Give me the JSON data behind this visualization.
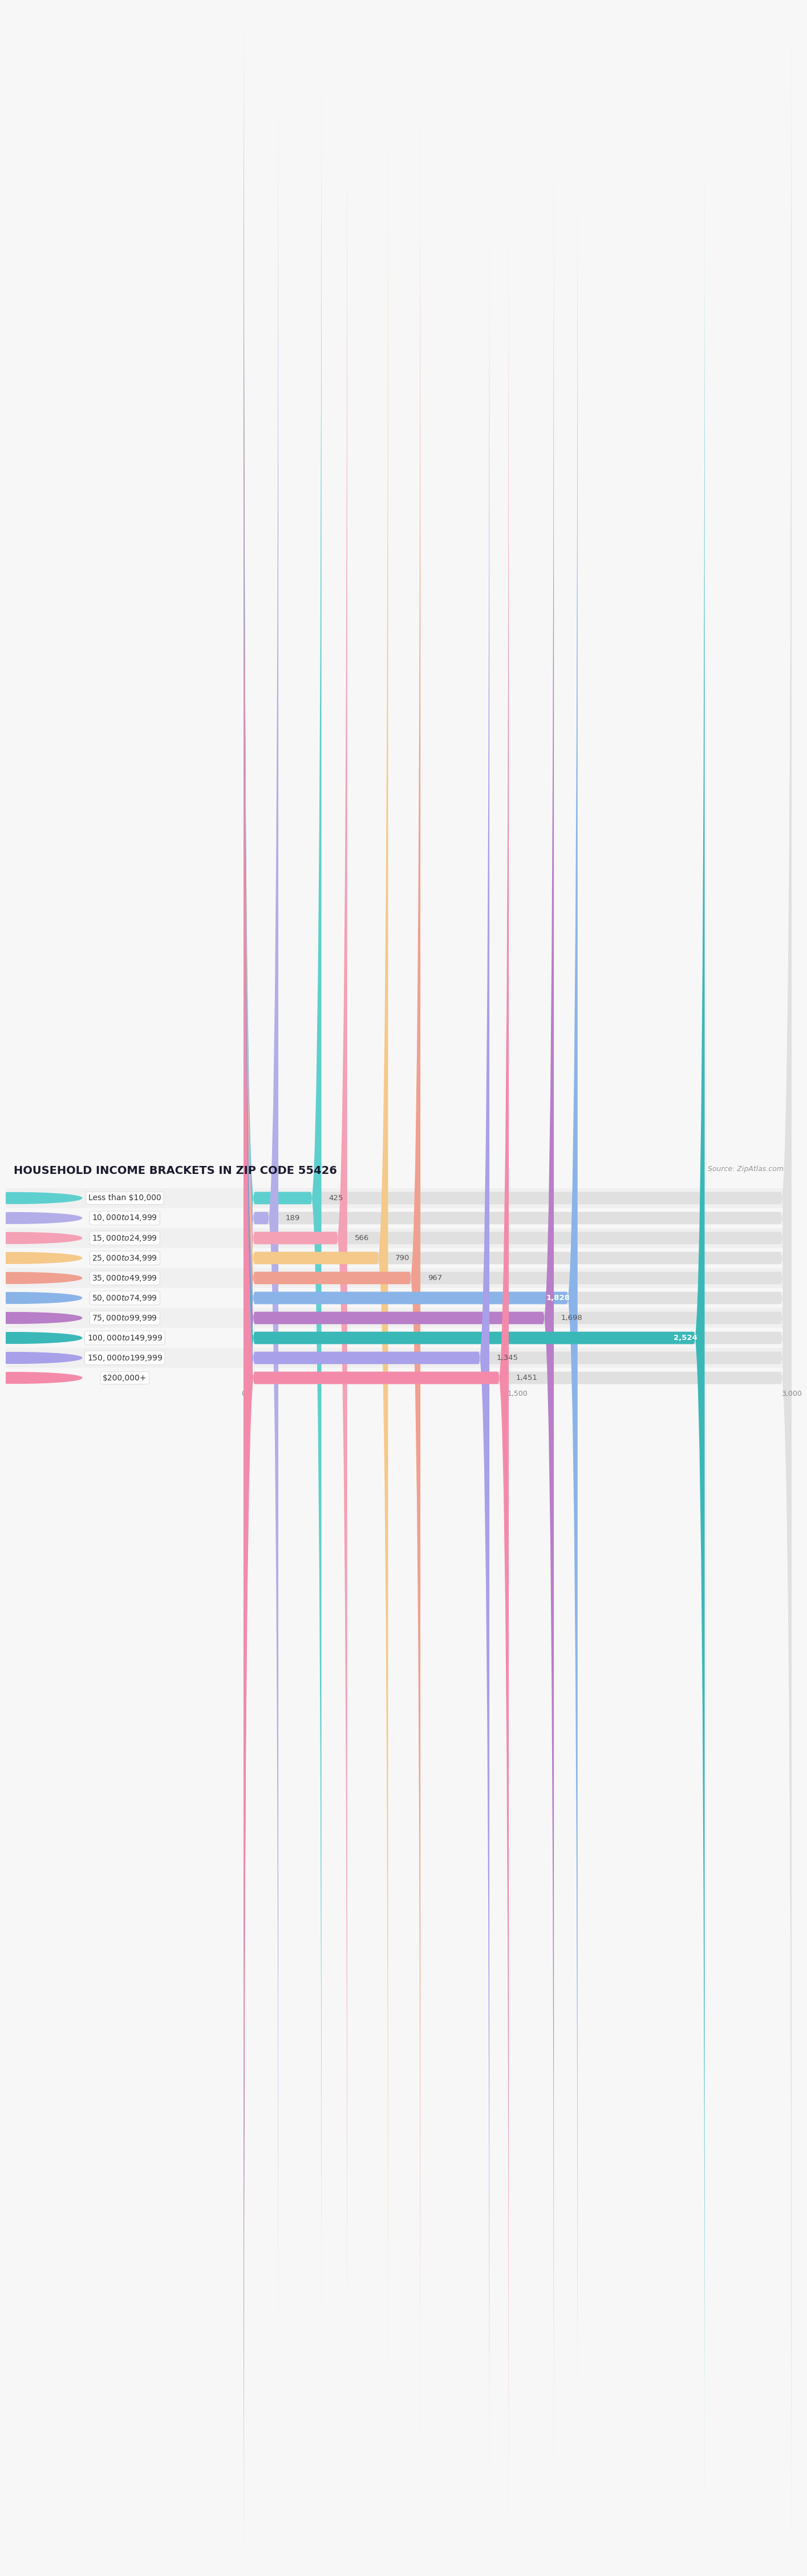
{
  "title": "HOUSEHOLD INCOME BRACKETS IN ZIP CODE 55426",
  "source": "Source: ZipAtlas.com",
  "categories": [
    "Less than $10,000",
    "$10,000 to $14,999",
    "$15,000 to $24,999",
    "$25,000 to $34,999",
    "$35,000 to $49,999",
    "$50,000 to $74,999",
    "$75,000 to $99,999",
    "$100,000 to $149,999",
    "$150,000 to $199,999",
    "$200,000+"
  ],
  "values": [
    425,
    189,
    566,
    790,
    967,
    1828,
    1698,
    2524,
    1345,
    1451
  ],
  "bar_colors": [
    "#5ecfcf",
    "#b3aee8",
    "#f4a0b5",
    "#f5c98a",
    "#f0a090",
    "#8ab4e8",
    "#b87ec8",
    "#3ab8b8",
    "#a8a0e8",
    "#f48aaa"
  ],
  "value_inside": [
    false,
    false,
    false,
    false,
    false,
    true,
    false,
    true,
    false,
    false
  ],
  "xlim": [
    0,
    3000
  ],
  "xticks": [
    0,
    1500,
    3000
  ],
  "xtick_labels": [
    "0",
    "1,500",
    "3,000"
  ],
  "background_color": "#f7f7f7",
  "bar_bg_color": "#e8e8e8",
  "row_bg_color": "#f0f0f0",
  "title_fontsize": 14,
  "label_fontsize": 10,
  "value_fontsize": 9.5,
  "source_fontsize": 9
}
